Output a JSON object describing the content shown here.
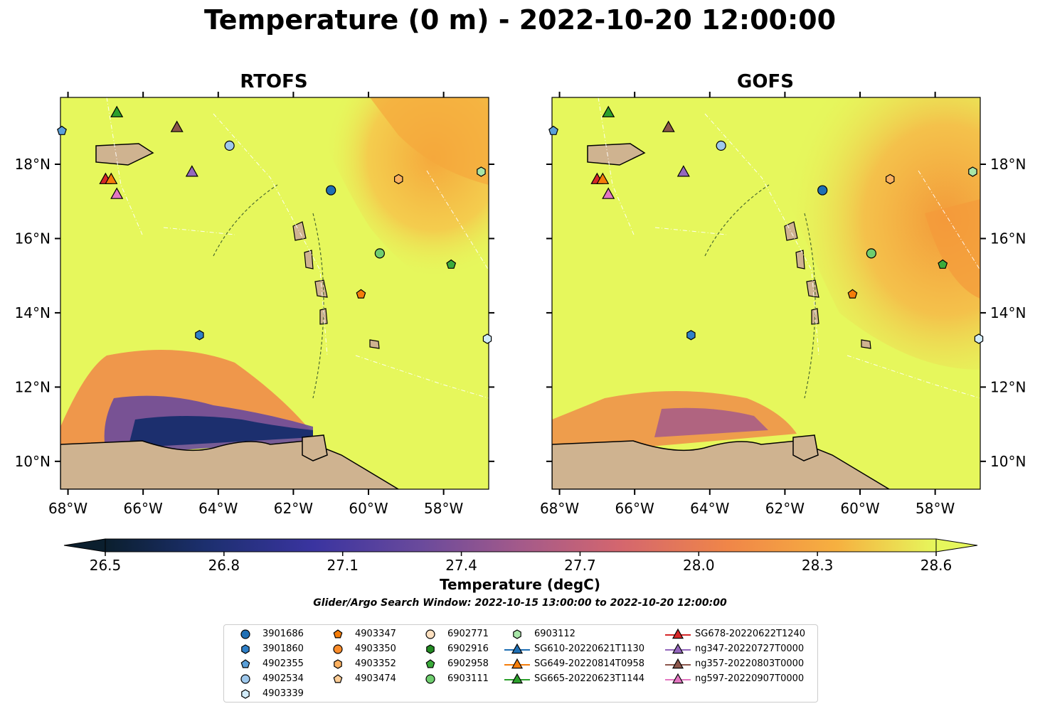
{
  "title": "Temperature (0 m) - 2022-10-20 12:00:00",
  "panels": [
    {
      "title": "RTOFS"
    },
    {
      "title": "GOFS"
    }
  ],
  "axes": {
    "lon_ticks": [
      "68°W",
      "66°W",
      "64°W",
      "62°W",
      "60°W",
      "58°W"
    ],
    "lat_ticks": [
      "18°N",
      "16°N",
      "14°N",
      "12°N",
      "10°N"
    ],
    "lon_range": [
      -68.2,
      -56.8
    ],
    "lat_range": [
      9.25,
      19.8
    ]
  },
  "colorbar": {
    "label": "Temperature (degC)",
    "ticks": [
      "26.5",
      "26.8",
      "27.1",
      "27.4",
      "27.7",
      "28.0",
      "28.3",
      "28.6"
    ],
    "range": [
      26.5,
      28.6
    ]
  },
  "search_window": "Glider/Argo Search Window: 2022-10-15 13:00:00 to 2022-10-20 12:00:00",
  "colors": {
    "land": "#cfb390",
    "sea_warm": "#e6f75c",
    "orange": "#f5a83c",
    "purple": "#5b3fa0"
  },
  "legend": [
    {
      "label": "3901686",
      "marker": "circle",
      "color": "#1f6fb4"
    },
    {
      "label": "3901860",
      "marker": "hexagon",
      "color": "#2f80c8"
    },
    {
      "label": "4902355",
      "marker": "pentagon",
      "color": "#5a9fd8"
    },
    {
      "label": "4902534",
      "marker": "circle",
      "color": "#9ec8ec"
    },
    {
      "label": "4903339",
      "marker": "hexagon",
      "color": "#d2ecfa"
    },
    {
      "label": "4903347",
      "marker": "pentagon",
      "color": "#f57d0a"
    },
    {
      "label": "4903350",
      "marker": "circle",
      "color": "#fb8c2a"
    },
    {
      "label": "4903352",
      "marker": "hexagon",
      "color": "#fbb060"
    },
    {
      "label": "4903474",
      "marker": "pentagon",
      "color": "#fdcd96"
    },
    {
      "label": "6902771",
      "marker": "circle",
      "color": "#fde0c0"
    },
    {
      "label": "6902916",
      "marker": "hexagon",
      "color": "#228b22"
    },
    {
      "label": "6902958",
      "marker": "pentagon",
      "color": "#3bab3b"
    },
    {
      "label": "6903111",
      "marker": "circle",
      "color": "#6fce6f"
    },
    {
      "label": "6903112",
      "marker": "hexagon",
      "color": "#a8e6a8"
    },
    {
      "label": "SG610-20220621T1130",
      "marker": "triangle-line",
      "color": "#1f6fb4"
    },
    {
      "label": "SG649-20220814T0958",
      "marker": "triangle-line",
      "color": "#f57d0a"
    },
    {
      "label": "SG665-20220623T1144",
      "marker": "triangle-line",
      "color": "#2ca02c"
    },
    {
      "label": "SG678-20220622T1240",
      "marker": "triangle-line",
      "color": "#d62728"
    },
    {
      "label": "ng347-20220727T0000",
      "marker": "triangle-line",
      "color": "#9467bd"
    },
    {
      "label": "ng357-20220803T0000",
      "marker": "triangle-line",
      "color": "#8c564b"
    },
    {
      "label": "ng597-20220907T0000",
      "marker": "triangle-line",
      "color": "#e377c2"
    }
  ],
  "observations": [
    {
      "id": "3901686",
      "lon": -61.0,
      "lat": 17.3
    },
    {
      "id": "3901860",
      "lon": -64.5,
      "lat": 13.4
    },
    {
      "id": "4902534",
      "lon": -63.7,
      "lat": 18.5
    },
    {
      "id": "4903339",
      "lon": -56.6,
      "lat": 13.3
    },
    {
      "id": "4903347",
      "lon": -60.2,
      "lat": 14.5
    },
    {
      "id": "4903352",
      "lon": -59.2,
      "lat": 17.6
    },
    {
      "id": "6902958",
      "lon": -57.8,
      "lat": 15.3
    },
    {
      "id": "6903111",
      "lon": -59.7,
      "lat": 15.6
    },
    {
      "id": "6903112",
      "lon": -57.0,
      "lat": 17.8
    },
    {
      "id": "4902355",
      "lon": -68.2,
      "lat": 18.9
    },
    {
      "id": "SG665-20220623T1144",
      "lon": -66.7,
      "lat": 19.4
    },
    {
      "id": "ng357-20220803T0000",
      "lon": -65.1,
      "lat": 19.0
    },
    {
      "id": "SG678-20220622T1240",
      "lon": -67.0,
      "lat": 17.6
    },
    {
      "id": "SG649-20220814T0958",
      "lon": -66.85,
      "lat": 17.6
    },
    {
      "id": "ng597-20220907T0000",
      "lon": -66.7,
      "lat": 17.2
    },
    {
      "id": "ng347-20220727T0000",
      "lon": -64.7,
      "lat": 17.8
    }
  ]
}
